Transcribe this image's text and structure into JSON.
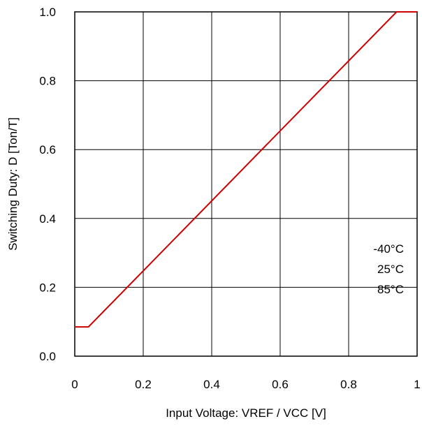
{
  "chart_data": {
    "type": "line",
    "title": "",
    "xlabel": "Input Voltage: VREF / VCC [V]",
    "ylabel": "Switching Duty: D [Ton/T]",
    "xlim": [
      0,
      1
    ],
    "ylim": [
      0,
      1
    ],
    "x_ticks": [
      "0",
      "0.2",
      "0.4",
      "0.6",
      "0.8",
      "1"
    ],
    "x_tick_values": [
      0,
      0.2,
      0.4,
      0.6,
      0.8,
      1
    ],
    "y_ticks": [
      "0.0",
      "0.2",
      "0.4",
      "0.6",
      "0.8",
      "1.0"
    ],
    "y_tick_values": [
      0,
      0.2,
      0.4,
      0.6,
      0.8,
      1
    ],
    "grid": true,
    "annotations": [
      "-40°C",
      "25°C",
      "85°C"
    ],
    "series": [
      {
        "color": "#cc0000",
        "x": [
          0,
          0.04,
          0.94,
          1.0
        ],
        "y": [
          0.085,
          0.085,
          1.0,
          1.0
        ]
      }
    ]
  }
}
